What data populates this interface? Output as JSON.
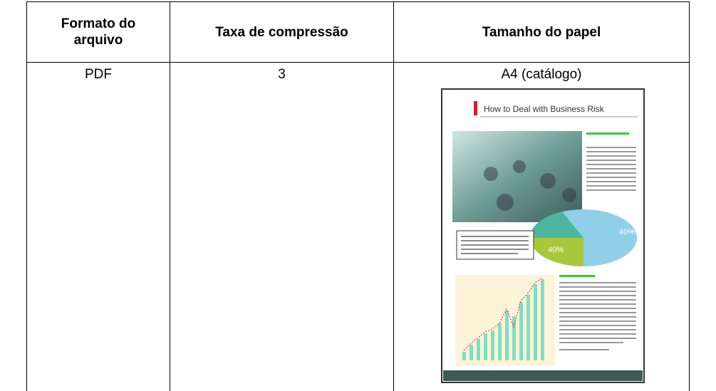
{
  "table": {
    "header": [
      "Formato do arquivo",
      "Taxa de compressão",
      "Tamanho do papel"
    ],
    "rows": [
      [
        "PDF",
        "3",
        "A4 (catálogo)"
      ]
    ]
  },
  "thumbnail": {
    "title": "How to Deal with Business Risk",
    "pie_labels": [
      "40%",
      "40%"
    ]
  }
}
